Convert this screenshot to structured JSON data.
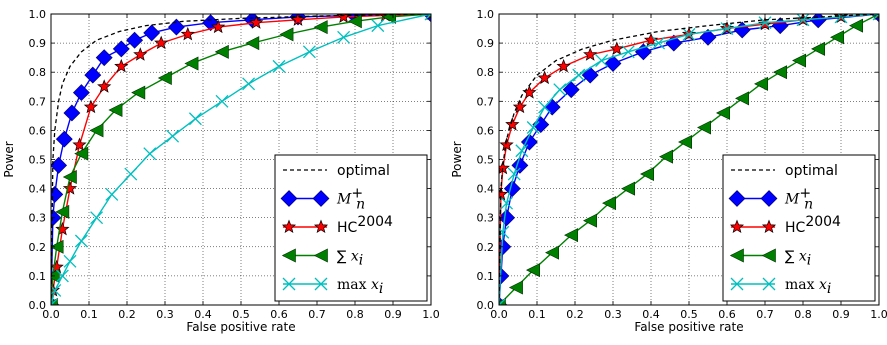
{
  "chart_data": [
    {
      "type": "line",
      "title": "",
      "xlabel": "False positive rate",
      "ylabel": "Power",
      "xlim": [
        0,
        1
      ],
      "ylim": [
        0,
        1
      ],
      "xticks": [
        "0.0",
        "0.1",
        "0.2",
        "0.3",
        "0.4",
        "0.5",
        "0.6",
        "0.7",
        "0.8",
        "0.9",
        "1.0"
      ],
      "yticks": [
        "0.0",
        "0.1",
        "0.2",
        "0.3",
        "0.4",
        "0.5",
        "0.6",
        "0.7",
        "0.8",
        "0.9",
        "1.0"
      ],
      "grid": true,
      "legend_position": "bottom-right",
      "series": [
        {
          "name": "optimal",
          "style": "dashed",
          "color": "#000000",
          "marker": "none",
          "x": [
            0,
            0.005,
            0.01,
            0.02,
            0.03,
            0.05,
            0.08,
            0.12,
            0.18,
            0.25,
            0.35,
            0.5,
            0.7,
            0.9,
            1.0
          ],
          "y": [
            0,
            0.5,
            0.6,
            0.7,
            0.76,
            0.82,
            0.87,
            0.91,
            0.94,
            0.96,
            0.975,
            0.985,
            0.993,
            0.998,
            1.0
          ]
        },
        {
          "name": "M_n^+",
          "style": "solid",
          "color": "#0000ff",
          "marker": "diamond",
          "x": [
            0,
            0.005,
            0.01,
            0.02,
            0.035,
            0.055,
            0.08,
            0.11,
            0.14,
            0.185,
            0.22,
            0.265,
            0.33,
            0.42,
            0.53,
            0.65,
            0.8,
            1.0
          ],
          "y": [
            0,
            0.3,
            0.38,
            0.48,
            0.57,
            0.66,
            0.73,
            0.79,
            0.85,
            0.88,
            0.91,
            0.935,
            0.955,
            0.97,
            0.98,
            0.99,
            0.995,
            1.0
          ]
        },
        {
          "name": "HC^2004",
          "style": "solid",
          "color": "#ff0000",
          "marker": "star",
          "x": [
            0,
            0.005,
            0.015,
            0.03,
            0.05,
            0.075,
            0.105,
            0.14,
            0.185,
            0.235,
            0.29,
            0.36,
            0.44,
            0.54,
            0.65,
            0.77,
            0.88,
            1.0
          ],
          "y": [
            0,
            0.05,
            0.13,
            0.26,
            0.4,
            0.55,
            0.68,
            0.75,
            0.82,
            0.86,
            0.9,
            0.93,
            0.955,
            0.97,
            0.98,
            0.99,
            0.995,
            1.0
          ]
        },
        {
          "name": "sum x_i",
          "style": "solid",
          "color": "#008000",
          "marker": "triangle-left",
          "x": [
            0,
            0.005,
            0.015,
            0.03,
            0.05,
            0.08,
            0.12,
            0.17,
            0.23,
            0.3,
            0.37,
            0.45,
            0.53,
            0.62,
            0.71,
            0.8,
            0.89,
            1.0
          ],
          "y": [
            0,
            0.1,
            0.2,
            0.32,
            0.44,
            0.52,
            0.6,
            0.67,
            0.73,
            0.78,
            0.83,
            0.87,
            0.9,
            0.93,
            0.955,
            0.975,
            0.99,
            1.0
          ]
        },
        {
          "name": "max x_i",
          "style": "solid",
          "color": "#00bfbf",
          "marker": "x",
          "x": [
            0,
            0.01,
            0.03,
            0.05,
            0.08,
            0.12,
            0.16,
            0.21,
            0.26,
            0.32,
            0.38,
            0.45,
            0.52,
            0.6,
            0.68,
            0.77,
            0.86,
            1.0
          ],
          "y": [
            0,
            0.05,
            0.1,
            0.15,
            0.22,
            0.3,
            0.38,
            0.45,
            0.52,
            0.58,
            0.64,
            0.7,
            0.76,
            0.82,
            0.87,
            0.92,
            0.96,
            1.0
          ]
        }
      ]
    },
    {
      "type": "line",
      "title": "",
      "xlabel": "False positive rate",
      "ylabel": "Power",
      "xlim": [
        0,
        1
      ],
      "ylim": [
        0,
        1
      ],
      "xticks": [
        "0.0",
        "0.1",
        "0.2",
        "0.3",
        "0.4",
        "0.5",
        "0.6",
        "0.7",
        "0.8",
        "0.9",
        "1.0"
      ],
      "yticks": [
        "0.0",
        "0.1",
        "0.2",
        "0.3",
        "0.4",
        "0.5",
        "0.6",
        "0.7",
        "0.8",
        "0.9",
        "1.0"
      ],
      "grid": true,
      "legend_position": "bottom-right",
      "series": [
        {
          "name": "optimal",
          "style": "dashed",
          "color": "#000000",
          "marker": "none",
          "x": [
            0,
            0.005,
            0.01,
            0.02,
            0.04,
            0.06,
            0.1,
            0.15,
            0.22,
            0.3,
            0.42,
            0.55,
            0.7,
            0.85,
            1.0
          ],
          "y": [
            0,
            0.4,
            0.48,
            0.57,
            0.66,
            0.72,
            0.79,
            0.84,
            0.88,
            0.91,
            0.94,
            0.96,
            0.98,
            0.99,
            1.0
          ]
        },
        {
          "name": "M_n^+",
          "style": "solid",
          "color": "#0000ff",
          "marker": "diamond",
          "x": [
            0,
            0.005,
            0.01,
            0.02,
            0.035,
            0.055,
            0.08,
            0.11,
            0.14,
            0.19,
            0.24,
            0.3,
            0.38,
            0.46,
            0.55,
            0.64,
            0.74,
            0.84,
            1.0
          ],
          "y": [
            0,
            0.1,
            0.2,
            0.3,
            0.4,
            0.48,
            0.56,
            0.62,
            0.68,
            0.74,
            0.79,
            0.83,
            0.87,
            0.9,
            0.92,
            0.945,
            0.96,
            0.98,
            1.0
          ]
        },
        {
          "name": "HC^2004",
          "style": "solid",
          "color": "#ff0000",
          "marker": "star",
          "x": [
            0,
            0.005,
            0.01,
            0.02,
            0.035,
            0.055,
            0.08,
            0.12,
            0.17,
            0.24,
            0.31,
            0.4,
            0.5,
            0.6,
            0.7,
            0.8,
            0.9,
            1.0
          ],
          "y": [
            0,
            0.38,
            0.47,
            0.55,
            0.62,
            0.68,
            0.73,
            0.78,
            0.82,
            0.86,
            0.88,
            0.91,
            0.93,
            0.95,
            0.965,
            0.98,
            0.99,
            1.0
          ]
        },
        {
          "name": "sum x_i",
          "style": "solid",
          "color": "#008000",
          "marker": "triangle-left",
          "x": [
            0,
            0.045,
            0.09,
            0.14,
            0.19,
            0.24,
            0.29,
            0.34,
            0.39,
            0.44,
            0.49,
            0.54,
            0.59,
            0.64,
            0.69,
            0.74,
            0.79,
            0.84,
            0.89,
            0.94,
            1.0
          ],
          "y": [
            0,
            0.06,
            0.12,
            0.18,
            0.24,
            0.29,
            0.35,
            0.4,
            0.45,
            0.51,
            0.56,
            0.61,
            0.66,
            0.71,
            0.76,
            0.8,
            0.84,
            0.88,
            0.92,
            0.96,
            1.0
          ]
        },
        {
          "name": "max x_i",
          "style": "solid",
          "color": "#00bfbf",
          "marker": "x",
          "x": [
            0,
            0.01,
            0.02,
            0.04,
            0.06,
            0.09,
            0.12,
            0.16,
            0.21,
            0.27,
            0.34,
            0.42,
            0.5,
            0.6,
            0.7,
            0.8,
            0.9,
            1.0
          ],
          "y": [
            0,
            0.25,
            0.35,
            0.45,
            0.53,
            0.61,
            0.68,
            0.74,
            0.79,
            0.84,
            0.87,
            0.9,
            0.93,
            0.95,
            0.97,
            0.98,
            0.99,
            1.0
          ]
        }
      ]
    }
  ]
}
